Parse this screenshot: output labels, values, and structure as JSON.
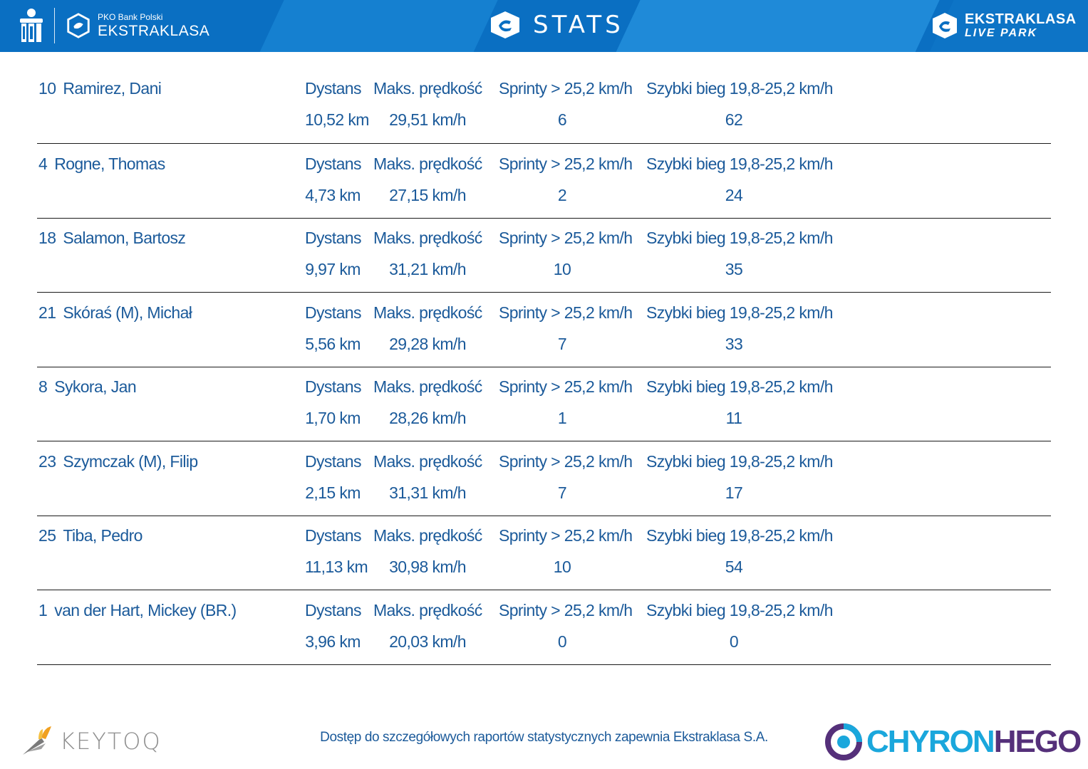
{
  "header": {
    "left_logo_sub": "PKO Bank Polski",
    "left_logo_main": "EKSTRAKLASA",
    "title": "STATS",
    "right_logo_main": "EKSTRAKLASA",
    "right_logo_sub": "LIVE PARK"
  },
  "columns": {
    "distance": "Dystans",
    "max_speed": "Maks. prędkość",
    "sprints": "Sprinty > 25,2 km/h",
    "fast_runs": "Szybki bieg 19,8-25,2 km/h"
  },
  "players": [
    {
      "number": "10",
      "name": "Ramirez, Dani",
      "distance": "10,52 km",
      "max_speed": "29,51 km/h",
      "sprints": "6",
      "fast_runs": "62"
    },
    {
      "number": "4",
      "name": "Rogne, Thomas",
      "distance": "4,73 km",
      "max_speed": "27,15 km/h",
      "sprints": "2",
      "fast_runs": "24"
    },
    {
      "number": "18",
      "name": "Salamon, Bartosz",
      "distance": "9,97 km",
      "max_speed": "31,21 km/h",
      "sprints": "10",
      "fast_runs": "35"
    },
    {
      "number": "21",
      "name": "Skóraś (M), Michał",
      "distance": "5,56 km",
      "max_speed": "29,28 km/h",
      "sprints": "7",
      "fast_runs": "33"
    },
    {
      "number": "8",
      "name": "Sykora, Jan",
      "distance": "1,70 km",
      "max_speed": "28,26 km/h",
      "sprints": "1",
      "fast_runs": "11"
    },
    {
      "number": "23",
      "name": "Szymczak (M), Filip",
      "distance": "2,15 km",
      "max_speed": "31,31 km/h",
      "sprints": "7",
      "fast_runs": "17"
    },
    {
      "number": "25",
      "name": "Tiba, Pedro",
      "distance": "11,13 km",
      "max_speed": "30,98 km/h",
      "sprints": "10",
      "fast_runs": "54"
    },
    {
      "number": "1",
      "name": "van der Hart, Mickey (BR.)",
      "distance": "3,96 km",
      "max_speed": "20,03 km/h",
      "sprints": "0",
      "fast_runs": "0"
    }
  ],
  "footer": {
    "note": "Dostęp do szczegółowych raportów statystycznych zapewnia Ekstraklasa S.A.",
    "left_logo": "KEYTOQ",
    "right_logo_a": "CHYRON",
    "right_logo_b": "HEGO"
  },
  "colors": {
    "header_bg": "#0a6fc2",
    "text_blue": "#1b5a9a",
    "divider": "#1a1a1a"
  }
}
